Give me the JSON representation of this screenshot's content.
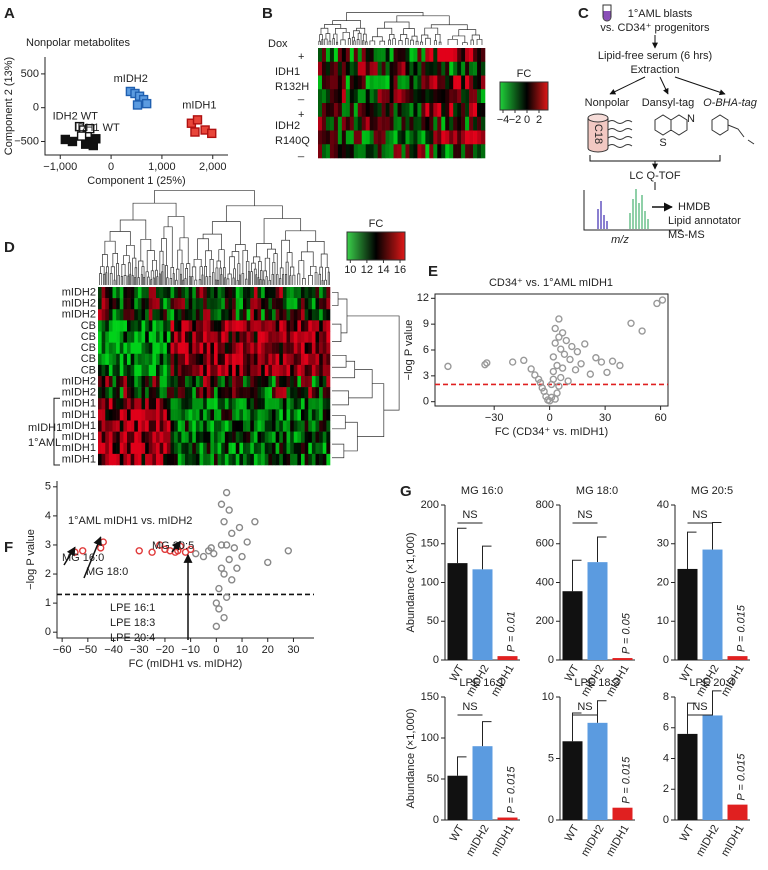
{
  "panel_labels": [
    "A",
    "B",
    "C",
    "D",
    "E",
    "F",
    "G"
  ],
  "chart_data": [
    {
      "type": "scatter",
      "marker": "square",
      "frame": "axes",
      "title": "Nonpolar metabolites",
      "xlabel": "Component 1 (25%)",
      "ylabel": "Component 2 (13%)",
      "xlim": [
        -1300,
        2300
      ],
      "ylim": [
        -700,
        750
      ],
      "xticks": [
        {
          "value": -1000,
          "label": "−1,000"
        },
        0,
        {
          "value": 1000,
          "label": "1,000"
        },
        {
          "value": 2000,
          "label": "2,000"
        }
      ],
      "yticks": [
        {
          "value": -500,
          "label": "−500"
        },
        0,
        500
      ],
      "series": [
        {
          "name": "IDH2 WT",
          "color": "#111111",
          "fill": "#ffffff",
          "x": [
            -620,
            -540,
            -470,
            -580,
            -420
          ],
          "y": [
            -280,
            -330,
            -400,
            -420,
            -310
          ]
        },
        {
          "name": "IDH1 WT",
          "color": "#111111",
          "fill": "#111111",
          "x": [
            -900,
            -760,
            -420,
            -350,
            -300,
            -500
          ],
          "y": [
            -470,
            -500,
            -500,
            -560,
            -460,
            -540
          ]
        },
        {
          "name": "mIDH2",
          "color": "#1f5fb0",
          "fill": "#5b9be0",
          "x": [
            380,
            470,
            560,
            640,
            700,
            520
          ],
          "y": [
            240,
            210,
            170,
            120,
            60,
            40
          ]
        },
        {
          "name": "mIDH1",
          "color": "#b01010",
          "fill": "#e8453a",
          "x": [
            1580,
            1700,
            1850,
            1980,
            1650
          ],
          "y": [
            -230,
            -180,
            -330,
            -380,
            -360
          ]
        }
      ]
    },
    {
      "type": "scatter",
      "marker": "circle",
      "frame": "box",
      "title": "CD34⁺ vs. 1°AML mIDH1",
      "xlabel": "FC (CD34⁺ vs. mIDH1)",
      "ylabel": "−log P value",
      "xlim": [
        -62,
        64
      ],
      "ylim": [
        -0.5,
        12.5
      ],
      "xticks": [
        {
          "value": -30,
          "label": "−30"
        },
        0,
        30,
        60
      ],
      "yticks": [
        0,
        3,
        6,
        9,
        12
      ],
      "hline": {
        "value": 2,
        "color": "#e02020"
      },
      "series": [
        {
          "color": "#999999",
          "x": [
            -55,
            -35,
            -34,
            -20,
            -14,
            -10,
            -8,
            -6,
            -5,
            -4,
            -3,
            -2,
            -1,
            0,
            1,
            1,
            2,
            2,
            3,
            3,
            4,
            4,
            5,
            5,
            6,
            6,
            7,
            7,
            8,
            9,
            10,
            11,
            12,
            14,
            15,
            17,
            19,
            22,
            25,
            28,
            31,
            34,
            38,
            44,
            50,
            58,
            61,
            3,
            5,
            2
          ],
          "y": [
            4.1,
            4.3,
            4.5,
            4.6,
            4.8,
            3.8,
            3.1,
            2.6,
            2.2,
            1.6,
            1.2,
            0.6,
            0.2,
            0.1,
            0.5,
            2.0,
            3.5,
            5.2,
            6.8,
            8.5,
            1.0,
            4.2,
            7.5,
            9.6,
            2.8,
            6.1,
            3.9,
            8.0,
            5.5,
            7.1,
            2.4,
            4.9,
            6.4,
            3.7,
            5.8,
            4.4,
            6.7,
            3.2,
            5.1,
            4.6,
            3.4,
            4.7,
            4.2,
            9.1,
            8.2,
            11.4,
            11.8,
            0.3,
            1.8,
            2.6
          ]
        }
      ]
    },
    {
      "type": "scatter",
      "marker": "circle",
      "frame": "axes",
      "title": "1°AML mIDH1 vs. mIDH2",
      "xlabel": "FC (mIDH1 vs. mIDH2)",
      "ylabel": "−log P value",
      "xlim": [
        -62,
        38
      ],
      "ylim": [
        -0.2,
        5.2
      ],
      "xticks": [
        {
          "value": -60,
          "label": "−60"
        },
        {
          "value": -50,
          "label": "−50"
        },
        {
          "value": -40,
          "label": "−40"
        },
        {
          "value": -30,
          "label": "−30"
        },
        {
          "value": -20,
          "label": "−20"
        },
        {
          "value": -10,
          "label": "−10"
        },
        0,
        10,
        20,
        30
      ],
      "yticks": [
        0,
        1,
        2,
        3,
        4,
        5
      ],
      "hline": {
        "value": 1.3,
        "color": "#111111"
      },
      "annotations": [
        "MG 16:0",
        "MG 18:0",
        "MG 20:5",
        "LPE 16:1",
        "LPE 18:3",
        "LPE 20:4"
      ],
      "series": [
        {
          "color": "#888888",
          "x": [
            0,
            1,
            1,
            2,
            2,
            3,
            3,
            4,
            4,
            5,
            5,
            6,
            6,
            7,
            8,
            9,
            10,
            12,
            15,
            20,
            28,
            -1,
            -2,
            -3,
            -5,
            -8,
            0,
            2,
            3,
            4
          ],
          "y": [
            0.2,
            0.8,
            1.5,
            2.2,
            3.0,
            0.5,
            3.8,
            1.2,
            4.8,
            2.5,
            4.2,
            1.8,
            3.4,
            2.9,
            2.2,
            3.6,
            2.6,
            3.1,
            3.8,
            2.4,
            2.8,
            2.7,
            2.9,
            2.8,
            2.6,
            2.7,
            1.0,
            4.4,
            2.0,
            3.0
          ]
        },
        {
          "color": "#e03a3a",
          "x": [
            -55,
            -52,
            -45,
            -44,
            -30,
            -25,
            -22,
            -20,
            -18,
            -16,
            -15,
            -14,
            -12,
            -10
          ],
          "y": [
            2.75,
            2.8,
            2.9,
            3.1,
            2.8,
            2.75,
            3.0,
            2.85,
            2.8,
            2.75,
            2.8,
            2.95,
            2.75,
            2.85
          ]
        }
      ]
    },
    {
      "type": "bar",
      "title": "MG 16:0",
      "ylabel": "Abundance (×1,000)",
      "categories": [
        "WT",
        "mIDH2",
        "mIDH1"
      ],
      "values": [
        125,
        117,
        5
      ],
      "errors": [
        45,
        30,
        null
      ],
      "colors": [
        "#111111",
        "#5b9be0",
        "#e02020"
      ],
      "ylim": [
        0,
        200
      ],
      "yticks": [
        0,
        50,
        100,
        150,
        200
      ],
      "ns_label": "NS",
      "p_label": "P = 0.01"
    },
    {
      "type": "bar",
      "title": "MG 18:0",
      "categories": [
        "WT",
        "mIDH2",
        "mIDH1"
      ],
      "values": [
        355,
        505,
        10
      ],
      "errors": [
        160,
        130,
        null
      ],
      "colors": [
        "#111111",
        "#5b9be0",
        "#e02020"
      ],
      "ylim": [
        0,
        800
      ],
      "yticks": [
        0,
        200,
        400,
        600,
        800
      ],
      "ns_label": "NS",
      "p_label": "P = 0.05"
    },
    {
      "type": "bar",
      "title": "MG 20:5",
      "categories": [
        "WT",
        "mIDH2",
        "mIDH1"
      ],
      "values": [
        23.5,
        28.5,
        1
      ],
      "errors": [
        9.5,
        7,
        null
      ],
      "colors": [
        "#111111",
        "#5b9be0",
        "#e02020"
      ],
      "ylim": [
        0,
        40
      ],
      "yticks": [
        0,
        10,
        20,
        30,
        40
      ],
      "ns_label": "NS",
      "p_label": "P = 0.015"
    },
    {
      "type": "bar",
      "title": "LPE 16:1",
      "ylabel": "Abundance (×1,000)",
      "categories": [
        "WT",
        "mIDH2",
        "mIDH1"
      ],
      "values": [
        54,
        90,
        3
      ],
      "errors": [
        23,
        30,
        null
      ],
      "colors": [
        "#111111",
        "#5b9be0",
        "#e02020"
      ],
      "ylim": [
        0,
        150
      ],
      "yticks": [
        0,
        50,
        100,
        150
      ],
      "ns_label": "NS",
      "p_label": "P = 0.015"
    },
    {
      "type": "bar",
      "title": "LPE 18:3",
      "categories": [
        "WT",
        "mIDH2",
        "mIDH1"
      ],
      "values": [
        6.4,
        7.9,
        1
      ],
      "errors": [
        2.3,
        1.8,
        null
      ],
      "colors": [
        "#111111",
        "#5b9be0",
        "#e02020"
      ],
      "ylim": [
        0,
        10
      ],
      "yticks": [
        0,
        5,
        10
      ],
      "ns_label": "NS",
      "p_label": "P = 0.015"
    },
    {
      "type": "bar",
      "title": "LPE 20:4",
      "categories": [
        "WT",
        "mIDH2",
        "mIDH1"
      ],
      "values": [
        5.6,
        6.8,
        1
      ],
      "errors": [
        2,
        1.6,
        null
      ],
      "colors": [
        "#111111",
        "#5b9be0",
        "#e02020"
      ],
      "ylim": [
        0,
        8
      ],
      "yticks": [
        0,
        2,
        4,
        6,
        8
      ],
      "ns_label": "NS",
      "p_label": "P = 0.015"
    }
  ],
  "heatmap_b": {
    "dox_label": "Dox",
    "signs": [
      "+",
      "_",
      "+",
      "_"
    ],
    "groups": [
      {
        "name": "IDH1",
        "mutation": "R132H"
      },
      {
        "name": "IDH2",
        "mutation": "R140Q"
      }
    ],
    "legend_title": "FC",
    "clim": [
      -4.5,
      3.5
    ],
    "legend_ticks": [
      {
        "value": -4,
        "label": "−4"
      },
      {
        "value": -2,
        "label": "−2"
      },
      0,
      2
    ]
  },
  "diagram_c": {
    "source": "1°AML blasts",
    "comparison": "vs. CD34⁺ progenitors",
    "step1": "Lipid-free serum (6 hrs)",
    "step2": "Extraction",
    "branches": [
      "Nonpolar",
      "Dansyl-tag",
      "O-BHA-tag"
    ],
    "column": "C18",
    "atoms": [
      "S",
      "N"
    ],
    "instrument": "LC Q-TOF",
    "axis": "m/z",
    "outputs": [
      "HMDB",
      "Lipid annotator",
      "MS-MS"
    ]
  },
  "heatmap_d": {
    "row_labels": [
      "mIDH2",
      "mIDH2",
      "mIDH2",
      "CB",
      "CB",
      "CB",
      "CB",
      "CB",
      "mIDH2",
      "mIDH2",
      "mIDH1",
      "mIDH1",
      "mIDH1",
      "mIDH1",
      "mIDH1",
      "mIDH1"
    ],
    "label_colors": [
      "#1f4e8c",
      "#1f4e8c",
      "#1f4e8c",
      "#111111",
      "#111111",
      "#111111",
      "#111111",
      "#111111",
      "#1f4e8c",
      "#1f4e8c",
      "#e02020",
      "#e02020",
      "#e02020",
      "#e02020",
      "#e02020",
      "#e02020"
    ],
    "group_label": [
      "mIDH1",
      "1°AML"
    ],
    "legend_title": "FC",
    "clim": [
      9.6,
      16.6
    ],
    "legend_ticks": [
      10,
      12,
      14,
      16
    ]
  }
}
